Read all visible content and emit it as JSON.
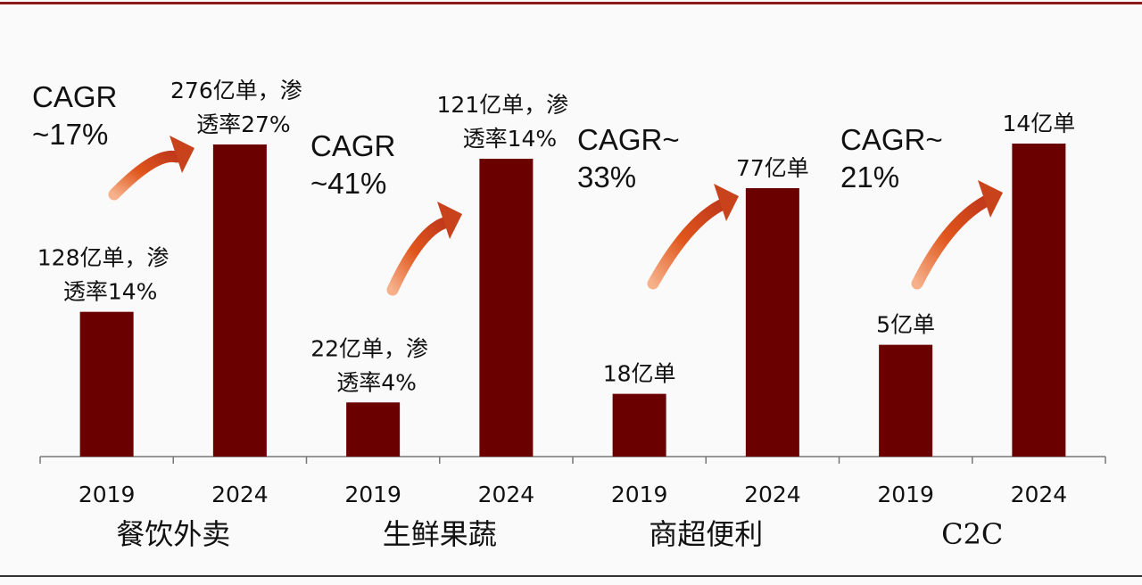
{
  "chart_data": {
    "type": "bar",
    "title": "",
    "xlabel": "",
    "ylabel": "",
    "grid": false,
    "bar_color": "#6b0000",
    "arrow_color": "#e0561c",
    "border_color": "#8b1a1a",
    "groups": [
      {
        "name": "餐饮外卖",
        "cagr": [
          "CAGR",
          "~17%"
        ],
        "bars": [
          {
            "x": "2019",
            "value": 128,
            "label": [
              "128亿单，渗",
              "透率14%"
            ]
          },
          {
            "x": "2024",
            "value": 276,
            "label": [
              "276亿单，渗",
              "透率27%"
            ]
          }
        ]
      },
      {
        "name": "生鲜果蔬",
        "cagr": [
          "CAGR",
          "~41%"
        ],
        "bars": [
          {
            "x": "2019",
            "value": 22,
            "label": [
              "22亿单，渗",
              "透率4%"
            ]
          },
          {
            "x": "2024",
            "value": 121,
            "label": [
              "121亿单，渗",
              "透率14%"
            ]
          }
        ]
      },
      {
        "name": "商超便利",
        "cagr": [
          "CAGR~",
          "33%"
        ],
        "bars": [
          {
            "x": "2019",
            "value": 18,
            "label": [
              "18亿单"
            ]
          },
          {
            "x": "2024",
            "value": 77,
            "label": [
              "77亿单"
            ]
          }
        ]
      },
      {
        "name": "C2C",
        "cagr": [
          "CAGR~",
          "21%"
        ],
        "bars": [
          {
            "x": "2019",
            "value": 5,
            "label": [
              "5亿单"
            ]
          },
          {
            "x": "2024",
            "value": 14,
            "label": [
              "14亿单"
            ]
          }
        ]
      }
    ]
  }
}
